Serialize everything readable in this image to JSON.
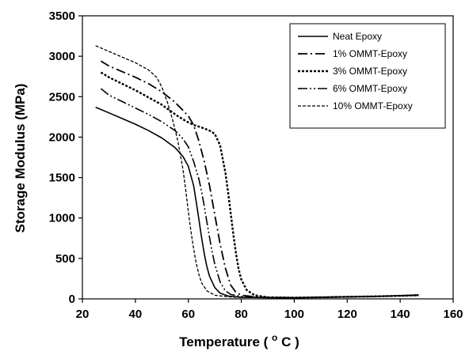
{
  "chart_data": {
    "type": "line",
    "title": "",
    "xlabel": "Temperature",
    "xlabel_unit_main": "C",
    "xlabel_unit_sup": "o",
    "ylabel": "Storage Modulus (MPa)",
    "xlim": [
      20,
      160
    ],
    "ylim": [
      0,
      3500
    ],
    "xticks": [
      20,
      40,
      60,
      80,
      100,
      120,
      140,
      160
    ],
    "yticks": [
      0,
      500,
      1000,
      1500,
      2000,
      2500,
      3000,
      3500
    ],
    "grid": false,
    "legend_position": "top-right",
    "series": [
      {
        "name": "Neat Epoxy",
        "dash": "solid",
        "points": [
          [
            25,
            2370
          ],
          [
            30,
            2300
          ],
          [
            35,
            2230
          ],
          [
            40,
            2160
          ],
          [
            45,
            2080
          ],
          [
            50,
            1990
          ],
          [
            55,
            1870
          ],
          [
            58,
            1760
          ],
          [
            60,
            1640
          ],
          [
            62,
            1400
          ],
          [
            63,
            1200
          ],
          [
            64,
            980
          ],
          [
            65,
            760
          ],
          [
            66,
            560
          ],
          [
            67,
            400
          ],
          [
            68,
            280
          ],
          [
            70,
            140
          ],
          [
            72,
            70
          ],
          [
            75,
            35
          ],
          [
            80,
            20
          ],
          [
            90,
            15
          ],
          [
            100,
            15
          ],
          [
            110,
            20
          ],
          [
            120,
            25
          ],
          [
            130,
            30
          ],
          [
            140,
            40
          ],
          [
            147,
            50
          ]
        ]
      },
      {
        "name": "1% OMMT-Epoxy",
        "dash": "dashdot",
        "points": [
          [
            27,
            2940
          ],
          [
            30,
            2880
          ],
          [
            35,
            2810
          ],
          [
            40,
            2740
          ],
          [
            45,
            2660
          ],
          [
            50,
            2560
          ],
          [
            55,
            2430
          ],
          [
            58,
            2330
          ],
          [
            60,
            2260
          ],
          [
            62,
            2150
          ],
          [
            64,
            1950
          ],
          [
            66,
            1700
          ],
          [
            68,
            1400
          ],
          [
            70,
            1040
          ],
          [
            72,
            680
          ],
          [
            74,
            380
          ],
          [
            76,
            170
          ],
          [
            78,
            80
          ],
          [
            80,
            45
          ],
          [
            85,
            25
          ],
          [
            90,
            18
          ],
          [
            100,
            15
          ],
          [
            110,
            20
          ],
          [
            120,
            25
          ],
          [
            130,
            30
          ],
          [
            140,
            38
          ],
          [
            147,
            45
          ]
        ]
      },
      {
        "name": "3% OMMT-Epoxy",
        "dash": "dotted",
        "points": [
          [
            27,
            2800
          ],
          [
            30,
            2740
          ],
          [
            35,
            2660
          ],
          [
            40,
            2580
          ],
          [
            45,
            2490
          ],
          [
            50,
            2400
          ],
          [
            53,
            2330
          ],
          [
            56,
            2260
          ],
          [
            59,
            2200
          ],
          [
            62,
            2150
          ],
          [
            65,
            2120
          ],
          [
            68,
            2080
          ],
          [
            70,
            2040
          ],
          [
            72,
            1900
          ],
          [
            74,
            1560
          ],
          [
            75,
            1320
          ],
          [
            76,
            1060
          ],
          [
            77,
            800
          ],
          [
            78,
            560
          ],
          [
            79,
            370
          ],
          [
            80,
            240
          ],
          [
            82,
            110
          ],
          [
            85,
            45
          ],
          [
            90,
            20
          ],
          [
            100,
            15
          ],
          [
            110,
            20
          ],
          [
            120,
            25
          ],
          [
            130,
            30
          ],
          [
            140,
            38
          ],
          [
            147,
            45
          ]
        ]
      },
      {
        "name": "6% OMMT-Epoxy",
        "dash": "dashdotdot",
        "points": [
          [
            27,
            2600
          ],
          [
            30,
            2520
          ],
          [
            35,
            2440
          ],
          [
            40,
            2360
          ],
          [
            45,
            2280
          ],
          [
            50,
            2190
          ],
          [
            55,
            2080
          ],
          [
            58,
            1980
          ],
          [
            60,
            1880
          ],
          [
            62,
            1700
          ],
          [
            64,
            1480
          ],
          [
            65,
            1330
          ],
          [
            66,
            1150
          ],
          [
            67,
            950
          ],
          [
            68,
            760
          ],
          [
            69,
            580
          ],
          [
            70,
            430
          ],
          [
            72,
            210
          ],
          [
            74,
            100
          ],
          [
            76,
            55
          ],
          [
            80,
            30
          ],
          [
            90,
            18
          ],
          [
            100,
            15
          ],
          [
            110,
            20
          ],
          [
            120,
            25
          ],
          [
            130,
            30
          ],
          [
            140,
            38
          ],
          [
            147,
            45
          ]
        ]
      },
      {
        "name": "10% OMMT-Epoxy",
        "dash": "dashdense",
        "points": [
          [
            25,
            3130
          ],
          [
            30,
            3060
          ],
          [
            35,
            2990
          ],
          [
            40,
            2920
          ],
          [
            45,
            2830
          ],
          [
            48,
            2740
          ],
          [
            50,
            2620
          ],
          [
            52,
            2440
          ],
          [
            54,
            2220
          ],
          [
            56,
            1960
          ],
          [
            58,
            1600
          ],
          [
            59,
            1350
          ],
          [
            60,
            1080
          ],
          [
            61,
            830
          ],
          [
            62,
            620
          ],
          [
            63,
            440
          ],
          [
            64,
            300
          ],
          [
            65,
            200
          ],
          [
            67,
            100
          ],
          [
            70,
            45
          ],
          [
            75,
            25
          ],
          [
            80,
            18
          ],
          [
            90,
            15
          ],
          [
            100,
            15
          ],
          [
            110,
            20
          ],
          [
            120,
            25
          ],
          [
            130,
            30
          ],
          [
            140,
            38
          ],
          [
            147,
            45
          ]
        ]
      }
    ]
  }
}
